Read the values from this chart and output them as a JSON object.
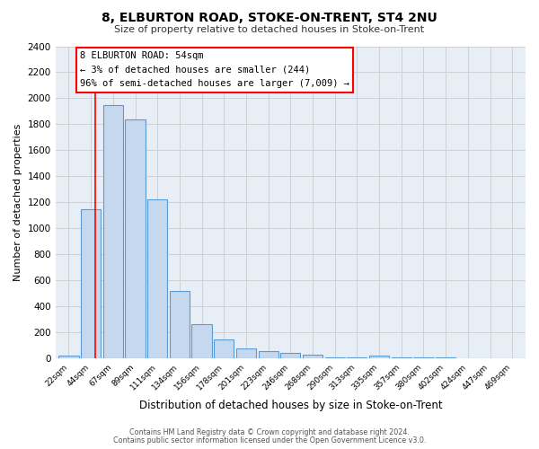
{
  "title": "8, ELBURTON ROAD, STOKE-ON-TRENT, ST4 2NU",
  "subtitle": "Size of property relative to detached houses in Stoke-on-Trent",
  "xlabel": "Distribution of detached houses by size in Stoke-on-Trent",
  "ylabel": "Number of detached properties",
  "bar_labels": [
    "22sqm",
    "44sqm",
    "67sqm",
    "89sqm",
    "111sqm",
    "134sqm",
    "156sqm",
    "178sqm",
    "201sqm",
    "223sqm",
    "246sqm",
    "268sqm",
    "290sqm",
    "313sqm",
    "335sqm",
    "357sqm",
    "380sqm",
    "402sqm",
    "424sqm",
    "447sqm",
    "469sqm"
  ],
  "bar_values": [
    25,
    1150,
    1950,
    1840,
    1220,
    520,
    265,
    148,
    80,
    60,
    40,
    30,
    10,
    5,
    20,
    5,
    5,
    5,
    3,
    3,
    2
  ],
  "bar_color": "#c5d8ee",
  "bar_edge_color": "#5b9bd5",
  "ylim": [
    0,
    2400
  ],
  "yticks": [
    0,
    200,
    400,
    600,
    800,
    1000,
    1200,
    1400,
    1600,
    1800,
    2000,
    2200,
    2400
  ],
  "red_line_x": 1.18,
  "annotation_title": "8 ELBURTON ROAD: 54sqm",
  "annotation_line1": "← 3% of detached houses are smaller (244)",
  "annotation_line2": "96% of semi-detached houses are larger (7,009) →",
  "footer1": "Contains HM Land Registry data © Crown copyright and database right 2024.",
  "footer2": "Contains public sector information licensed under the Open Government Licence v3.0.",
  "plot_bg_color": "#e8eef6"
}
